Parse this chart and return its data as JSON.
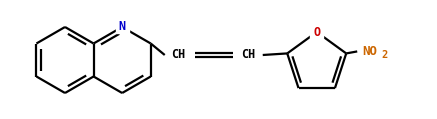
{
  "bg_color": "#ffffff",
  "line_color": "#000000",
  "N_color": "#0000cc",
  "O_color": "#cc0000",
  "NO2_color": "#cc6600",
  "CH_color": "#000000",
  "line_width": 1.6,
  "figsize": [
    4.37,
    1.19
  ],
  "dpi": 100,
  "xlim": [
    0,
    437
  ],
  "ylim": [
    0,
    119
  ]
}
